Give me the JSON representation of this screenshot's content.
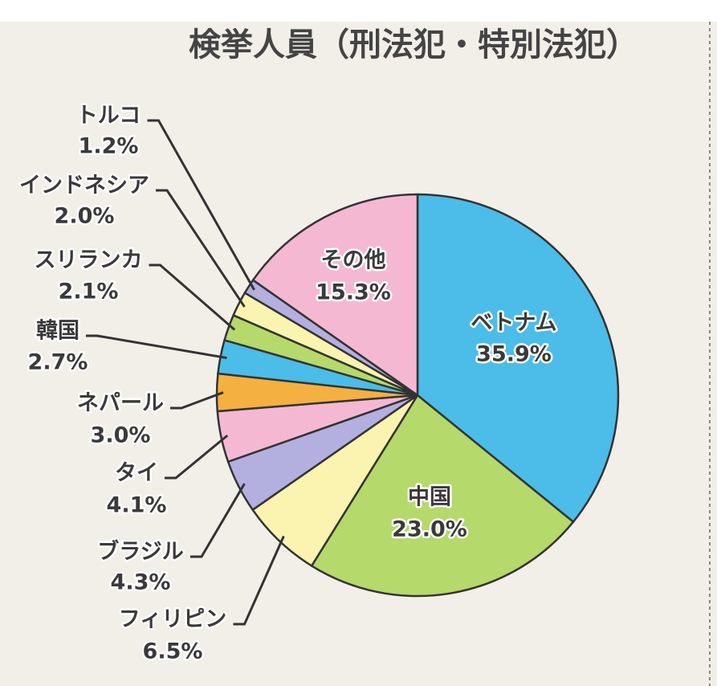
{
  "chart_data": {
    "type": "pie",
    "title": "検挙人員（刑法犯・特別法犯）",
    "categories": [
      "ベトナム",
      "中国",
      "フィリピン",
      "ブラジル",
      "タイ",
      "ネパール",
      "韓国",
      "スリランカ",
      "インドネシア",
      "トルコ",
      "その他"
    ],
    "values": [
      35.9,
      23.0,
      6.5,
      4.3,
      4.1,
      3.0,
      2.7,
      2.1,
      2.0,
      1.2,
      15.3
    ],
    "value_labels": [
      "35.9%",
      "23.0%",
      "6.5%",
      "4.3%",
      "4.1%",
      "3.0%",
      "2.7%",
      "2.1%",
      "2.0%",
      "1.2%",
      "15.3%"
    ],
    "colors": [
      "#4bbde8",
      "#b5d96a",
      "#fbf3b0",
      "#b3b0e0",
      "#f5b8d2",
      "#f4b040",
      "#4bbde8",
      "#b5d96a",
      "#fbf3b0",
      "#b3b0e0",
      "#f5b8d2"
    ]
  }
}
